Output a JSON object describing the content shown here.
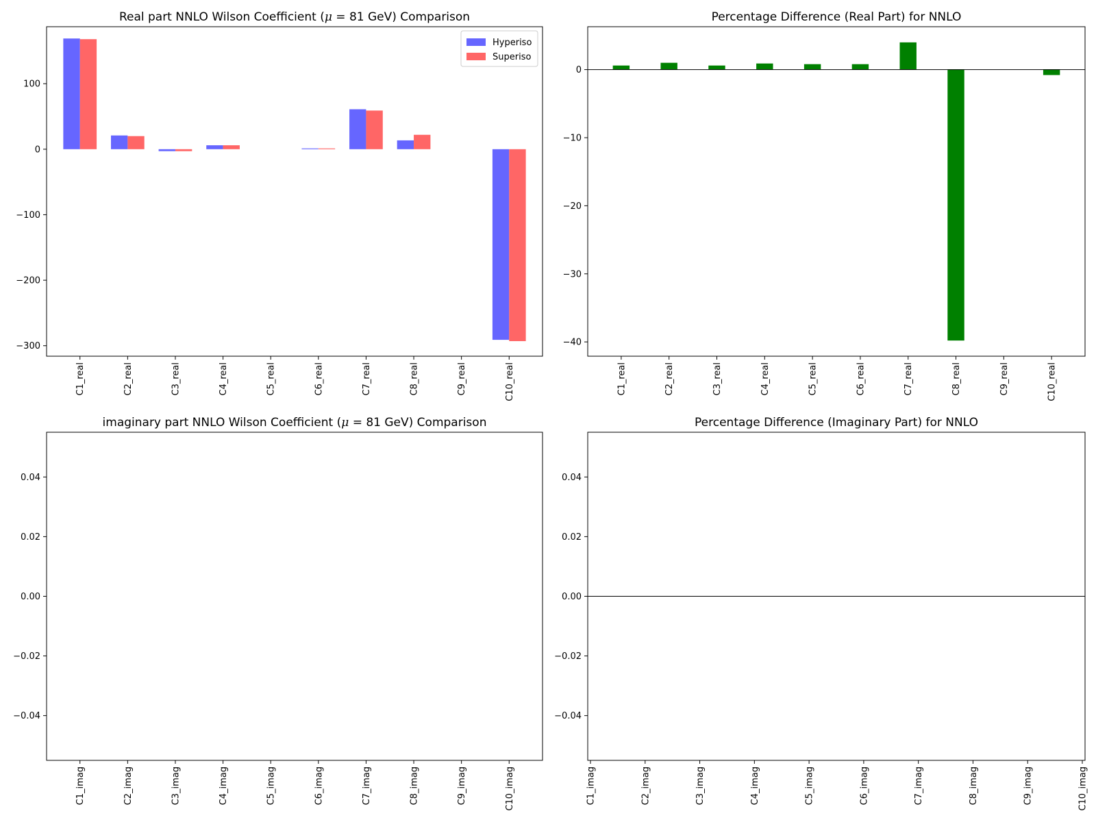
{
  "chart_data": [
    {
      "type": "bar",
      "title_parts": [
        "Real part NNLO Wilson Coefficient (",
        "μ",
        " = 81 GeV) Comparison"
      ],
      "categories": [
        "C1_real",
        "C2_real",
        "C3_real",
        "C4_real",
        "C5_real",
        "C6_real",
        "C7_real",
        "C8_real",
        "C9_real",
        "C10_real"
      ],
      "series": [
        {
          "name": "Hyperiso",
          "color": "#6666ff",
          "values": [
            169,
            21,
            -3,
            6,
            0,
            1.2,
            61,
            13.5,
            0,
            -291
          ]
        },
        {
          "name": "Superiso",
          "color": "#ff6666",
          "values": [
            168,
            20,
            -3,
            6,
            0,
            1.2,
            59,
            22,
            0,
            -293
          ]
        }
      ],
      "ylim": [
        -316,
        187
      ],
      "yticks": [
        {
          "v": 100,
          "label": "100"
        },
        {
          "v": 0,
          "label": "0"
        },
        {
          "v": -100,
          "label": "−100"
        },
        {
          "v": -200,
          "label": "−200"
        },
        {
          "v": -300,
          "label": "−300"
        }
      ],
      "legend": "top-right"
    },
    {
      "type": "bar",
      "title": "Percentage Difference (Real Part) for NNLO",
      "categories": [
        "C1_real",
        "C2_real",
        "C3_real",
        "C4_real",
        "C5_real",
        "C6_real",
        "C7_real",
        "C8_real",
        "C9_real",
        "C10_real"
      ],
      "series": [
        {
          "color": "#008000",
          "values": [
            0.6,
            1.0,
            0.6,
            0.9,
            0.8,
            0.8,
            4.0,
            -39.8,
            0,
            -0.8
          ]
        }
      ],
      "ylim": [
        -42.1,
        6.3
      ],
      "yticks": [
        {
          "v": 0,
          "label": "0"
        },
        {
          "v": -10,
          "label": "−10"
        },
        {
          "v": -20,
          "label": "−20"
        },
        {
          "v": -30,
          "label": "−30"
        },
        {
          "v": -40,
          "label": "−40"
        }
      ],
      "zero_line": true
    },
    {
      "type": "bar",
      "title_parts": [
        "imaginary part NNLO Wilson Coefficient (",
        "μ",
        " = 81 GeV) Comparison"
      ],
      "categories": [
        "C1_imag",
        "C2_imag",
        "C3_imag",
        "C4_imag",
        "C5_imag",
        "C6_imag",
        "C7_imag",
        "C8_imag",
        "C9_imag",
        "C10_imag"
      ],
      "series": [
        {
          "color": "#6666ff",
          "values": [
            0,
            0,
            0,
            0,
            0,
            0,
            0,
            0,
            0,
            0
          ]
        },
        {
          "color": "#ff6666",
          "values": [
            0,
            0,
            0,
            0,
            0,
            0,
            0,
            0,
            0,
            0
          ]
        }
      ],
      "ylim": [
        -0.055,
        0.055
      ],
      "yticks": [
        {
          "v": 0.04,
          "label": "0.04"
        },
        {
          "v": 0.02,
          "label": "0.02"
        },
        {
          "v": 0,
          "label": "0.00"
        },
        {
          "v": -0.02,
          "label": "−0.02"
        },
        {
          "v": -0.04,
          "label": "−0.04"
        }
      ]
    },
    {
      "type": "bar",
      "title": "Percentage Difference (Imaginary Part) for NNLO",
      "categories": [
        "C1_imag",
        "C2_imag",
        "C3_imag",
        "C4_imag",
        "C5_imag",
        "C6_imag",
        "C7_imag",
        "C8_imag",
        "C9_imag",
        "C10_imag"
      ],
      "series": [
        {
          "color": "#008000",
          "values": [
            0,
            0,
            0,
            0,
            0,
            0,
            0,
            0,
            0,
            0
          ]
        }
      ],
      "ylim": [
        -0.055,
        0.055
      ],
      "yticks": [
        {
          "v": 0.04,
          "label": "0.04"
        },
        {
          "v": 0.02,
          "label": "0.02"
        },
        {
          "v": 0,
          "label": "0.00"
        },
        {
          "v": -0.02,
          "label": "−0.02"
        },
        {
          "v": -0.04,
          "label": "−0.04"
        }
      ],
      "zero_line": true,
      "x_spread": "edge"
    }
  ]
}
